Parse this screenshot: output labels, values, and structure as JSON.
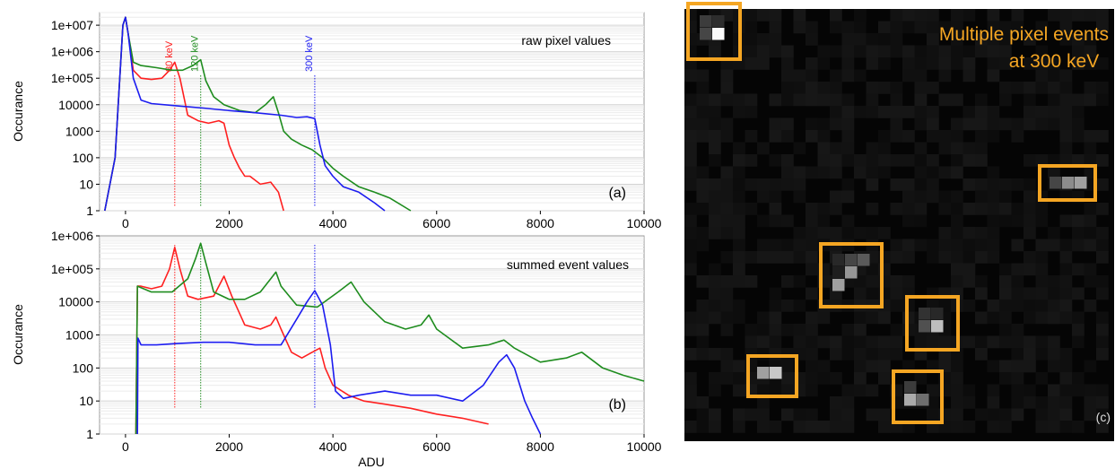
{
  "colors": {
    "series_80": "#ff2020",
    "series_120": "#1e8c1e",
    "series_300": "#1c1cf0",
    "event_box": "#f5a623",
    "detector_bg": "#050505"
  },
  "chart_data": [
    {
      "type": "line",
      "panel_label": "(a)",
      "annotation": "raw pixel values",
      "xlabel": "",
      "ylabel": "Occurance",
      "xlim": [
        -500,
        10000
      ],
      "ylim": [
        1,
        30000000
      ],
      "yscale": "log",
      "grid": true,
      "xticks": [
        0,
        2000,
        4000,
        6000,
        8000,
        10000
      ],
      "xtick_labels": [
        "0",
        "2000",
        "4000",
        "6000",
        "8000",
        "10000"
      ],
      "yticks": [
        1,
        10,
        100,
        1000,
        10000,
        100000,
        1000000,
        10000000
      ],
      "ytick_labels": [
        "1",
        "10",
        "100",
        "1000",
        "10000",
        "1e+005",
        "1e+006",
        "1e+007"
      ],
      "markers": [
        {
          "label": "80 keV",
          "x": 950,
          "color": "#ff2020"
        },
        {
          "label": "120 keV",
          "x": 1450,
          "color": "#1e8c1e"
        },
        {
          "label": "300 keV",
          "x": 3650,
          "color": "#1c1cf0"
        }
      ],
      "series": [
        {
          "color": "#ff2020",
          "x": [
            -400,
            -200,
            -50,
            0,
            50,
            150,
            300,
            500,
            700,
            850,
            950,
            1050,
            1200,
            1400,
            1600,
            1800,
            1900,
            2000,
            2100,
            2200,
            2300,
            2400,
            2600,
            2800,
            2950,
            3050
          ],
          "y": [
            1,
            100,
            10000000,
            20000000,
            5000000,
            200000,
            100000,
            90000,
            100000,
            200000,
            400000,
            100000,
            4000,
            2500,
            2000,
            2500,
            2000,
            300,
            100,
            40,
            20,
            20,
            10,
            12,
            5,
            1
          ]
        },
        {
          "color": "#1e8c1e",
          "x": [
            -400,
            -200,
            -50,
            0,
            50,
            150,
            300,
            600,
            900,
            1100,
            1300,
            1450,
            1550,
            1700,
            1900,
            2200,
            2500,
            2700,
            2850,
            2950,
            3050,
            3200,
            3400,
            3600,
            3800,
            4000,
            4200,
            4500,
            4800,
            5100,
            5500
          ],
          "y": [
            1,
            100,
            10000000,
            20000000,
            5000000,
            400000,
            300000,
            250000,
            200000,
            200000,
            300000,
            500000,
            80000,
            20000,
            10000,
            6000,
            5000,
            10000,
            20000,
            5000,
            1000,
            500,
            300,
            200,
            100,
            40,
            20,
            8,
            5,
            3,
            1
          ]
        },
        {
          "color": "#1c1cf0",
          "x": [
            -400,
            -200,
            -50,
            0,
            50,
            150,
            300,
            500,
            1000,
            1500,
            2000,
            2500,
            3000,
            3300,
            3500,
            3650,
            3750,
            3850,
            4000,
            4200,
            4500,
            4800,
            5000
          ],
          "y": [
            1,
            100,
            10000000,
            20000000,
            5000000,
            100000,
            15000,
            11000,
            9000,
            7500,
            6000,
            5000,
            4000,
            3300,
            3500,
            3000,
            300,
            50,
            20,
            8,
            5,
            2,
            1
          ]
        }
      ]
    },
    {
      "type": "line",
      "panel_label": "(b)",
      "annotation": "summed event values",
      "xlabel": "ADU",
      "ylabel": "Occurance",
      "xlim": [
        -500,
        10000
      ],
      "ylim": [
        1,
        1000000
      ],
      "yscale": "log",
      "grid": true,
      "xticks": [
        0,
        2000,
        4000,
        6000,
        8000,
        10000
      ],
      "xtick_labels": [
        "0",
        "2000",
        "4000",
        "6000",
        "8000",
        "10000"
      ],
      "yticks": [
        1,
        10,
        100,
        1000,
        10000,
        100000,
        1000000
      ],
      "ytick_labels": [
        "1",
        "10",
        "100",
        "1000",
        "10000",
        "1e+005",
        "1e+006"
      ],
      "markers": [
        {
          "x": 950,
          "color": "#ff2020"
        },
        {
          "x": 1450,
          "color": "#1e8c1e"
        },
        {
          "x": 3650,
          "color": "#1c1cf0"
        }
      ],
      "series": [
        {
          "color": "#ff2020",
          "x": [
            200,
            230,
            300,
            500,
            700,
            850,
            950,
            1050,
            1200,
            1400,
            1700,
            1900,
            2050,
            2300,
            2600,
            2800,
            2900,
            3000,
            3200,
            3400,
            3600,
            3750,
            3850,
            4000,
            4300,
            4600,
            5000,
            5500,
            6000,
            6500,
            7000
          ],
          "y": [
            1,
            30000,
            30000,
            25000,
            30000,
            100000,
            450000,
            100000,
            15000,
            12000,
            15000,
            60000,
            15000,
            2000,
            1500,
            2000,
            3500,
            1500,
            300,
            200,
            300,
            400,
            100,
            30,
            15,
            10,
            8,
            6,
            4,
            3,
            2
          ]
        },
        {
          "color": "#1e8c1e",
          "x": [
            200,
            230,
            500,
            900,
            1200,
            1350,
            1450,
            1550,
            1700,
            2000,
            2300,
            2600,
            2800,
            2900,
            3000,
            3300,
            3700,
            4100,
            4350,
            4600,
            5000,
            5400,
            5700,
            5850,
            6000,
            6500,
            7000,
            7300,
            7500,
            8000,
            8500,
            8800,
            9200,
            9600,
            10000
          ],
          "y": [
            1,
            30000,
            20000,
            20000,
            50000,
            200000,
            600000,
            150000,
            20000,
            12000,
            12000,
            20000,
            50000,
            80000,
            30000,
            8000,
            7000,
            20000,
            40000,
            10000,
            2500,
            1500,
            2000,
            4000,
            1500,
            400,
            500,
            700,
            400,
            150,
            200,
            300,
            100,
            60,
            40
          ]
        },
        {
          "color": "#1c1cf0",
          "x": [
            230,
            240,
            300,
            600,
            1000,
            1500,
            2000,
            2500,
            3000,
            3300,
            3500,
            3650,
            3800,
            3950,
            4050,
            4200,
            4500,
            5000,
            5500,
            6000,
            6500,
            6900,
            7200,
            7350,
            7500,
            7700,
            7850,
            8000
          ],
          "y": [
            1,
            800,
            500,
            500,
            550,
            600,
            600,
            500,
            500,
            3000,
            10000,
            22000,
            8000,
            500,
            20,
            12,
            15,
            20,
            15,
            15,
            10,
            30,
            150,
            250,
            100,
            10,
            3,
            1
          ]
        }
      ]
    },
    {
      "type": "heatmap",
      "panel_label": "(c)",
      "annotation": [
        "Multiple pixel events",
        "at 300 keV"
      ]
    }
  ]
}
